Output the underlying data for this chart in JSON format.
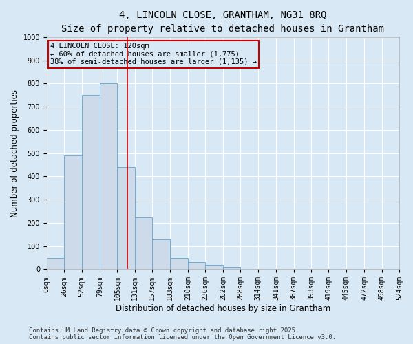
{
  "title": "4, LINCOLN CLOSE, GRANTHAM, NG31 8RQ",
  "subtitle": "Size of property relative to detached houses in Grantham",
  "xlabel": "Distribution of detached houses by size in Grantham",
  "ylabel": "Number of detached properties",
  "bin_edges": [
    0,
    26,
    52,
    79,
    105,
    131,
    157,
    183,
    210,
    236,
    262,
    288,
    314,
    341,
    367,
    393,
    419,
    445,
    472,
    498,
    524
  ],
  "bar_heights": [
    50,
    490,
    750,
    800,
    440,
    225,
    130,
    50,
    30,
    18,
    10,
    1,
    1,
    0,
    0,
    0,
    0,
    0,
    0,
    1
  ],
  "bar_color": "#ccdaea",
  "bar_edge_color": "#6baed6",
  "property_size": 120,
  "vline_color": "#cc0000",
  "annotation_text": "4 LINCOLN CLOSE: 120sqm\n← 60% of detached houses are smaller (1,775)\n38% of semi-detached houses are larger (1,135) →",
  "annotation_box_color": "#cc0000",
  "ylim": [
    0,
    1000
  ],
  "yticks": [
    0,
    100,
    200,
    300,
    400,
    500,
    600,
    700,
    800,
    900,
    1000
  ],
  "background_color": "#d8e8f4",
  "plot_bg_color": "#d8e8f4",
  "grid_color": "#ffffff",
  "footer_line1": "Contains HM Land Registry data © Crown copyright and database right 2025.",
  "footer_line2": "Contains public sector information licensed under the Open Government Licence v3.0.",
  "title_fontsize": 10,
  "subtitle_fontsize": 9,
  "axis_label_fontsize": 8.5,
  "tick_fontsize": 7,
  "annotation_fontsize": 7.5,
  "footer_fontsize": 6.5
}
